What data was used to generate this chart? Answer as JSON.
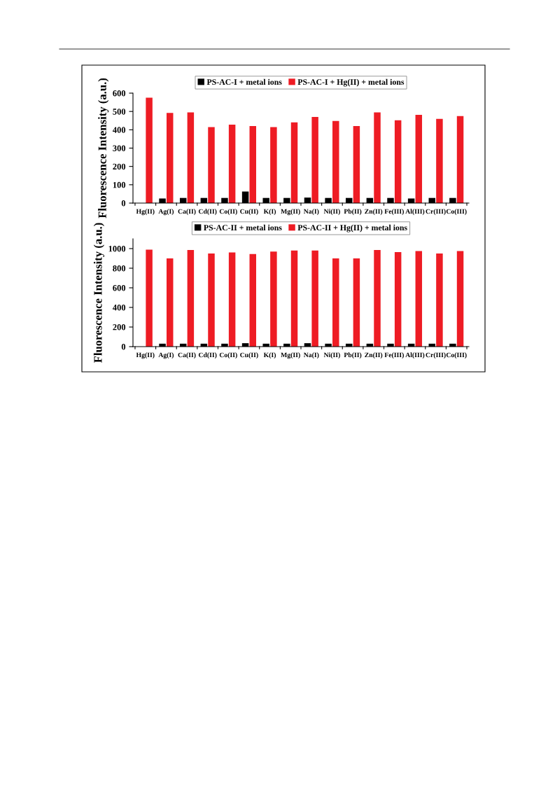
{
  "chart_data": [
    {
      "type": "bar",
      "ylabel": "Fluorescence Intensity (a.u.)",
      "categories": [
        "Hg(II)",
        "Ag(I)",
        "Ca(II)",
        "Cd(II)",
        "Co(II)",
        "Cu(II)",
        "K(I)",
        "Mg(II)",
        "Na(I)",
        "Ni(II)",
        "Pb(II)",
        "Zn(II)",
        "Fe(III)",
        "Al(III)",
        "Cr(III)",
        "Co(III)"
      ],
      "series": [
        {
          "name": "PS-AC-I + metal ions",
          "color": "#000000",
          "values": [
            null,
            25,
            28,
            28,
            28,
            63,
            28,
            28,
            30,
            28,
            28,
            28,
            28,
            25,
            28,
            28
          ]
        },
        {
          "name": "PS-AC-I + Hg(II) + metal ions",
          "color": "#ee1c24",
          "values": [
            575,
            492,
            495,
            415,
            428,
            420,
            415,
            440,
            470,
            448,
            420,
            495,
            452,
            482,
            460,
            475
          ]
        }
      ],
      "ylim": [
        0,
        600
      ],
      "yticks": [
        0,
        100,
        200,
        300,
        400,
        500,
        600
      ],
      "grid": false,
      "legend": "top"
    },
    {
      "type": "bar",
      "ylabel": "Fluorescence Intensity (a.u.)",
      "categories": [
        "Hg(II)",
        "Ag(I)",
        "Ca(II)",
        "Cd(II)",
        "Co(II)",
        "Cu(II)",
        "K(I)",
        "Mg(II)",
        "Na(I)",
        "Ni(II)",
        "Pb(II)",
        "Zn(II)",
        "Fe(III)",
        "Al(III)",
        "Cr(III)",
        "Co(III)"
      ],
      "series": [
        {
          "name": "PS-AC-II + metal ions",
          "color": "#000000",
          "values": [
            null,
            30,
            30,
            30,
            30,
            35,
            30,
            30,
            35,
            30,
            30,
            30,
            30,
            30,
            30,
            30
          ]
        },
        {
          "name": "PS-AC-II + Hg(II) + metal ions",
          "color": "#ee1c24",
          "values": [
            990,
            900,
            985,
            950,
            960,
            945,
            970,
            980,
            980,
            900,
            900,
            985,
            965,
            975,
            950,
            975
          ]
        }
      ],
      "ylim": [
        0,
        1100
      ],
      "yticks": [
        0,
        200,
        400,
        600,
        800,
        1000
      ],
      "grid": false,
      "legend": "top"
    }
  ]
}
